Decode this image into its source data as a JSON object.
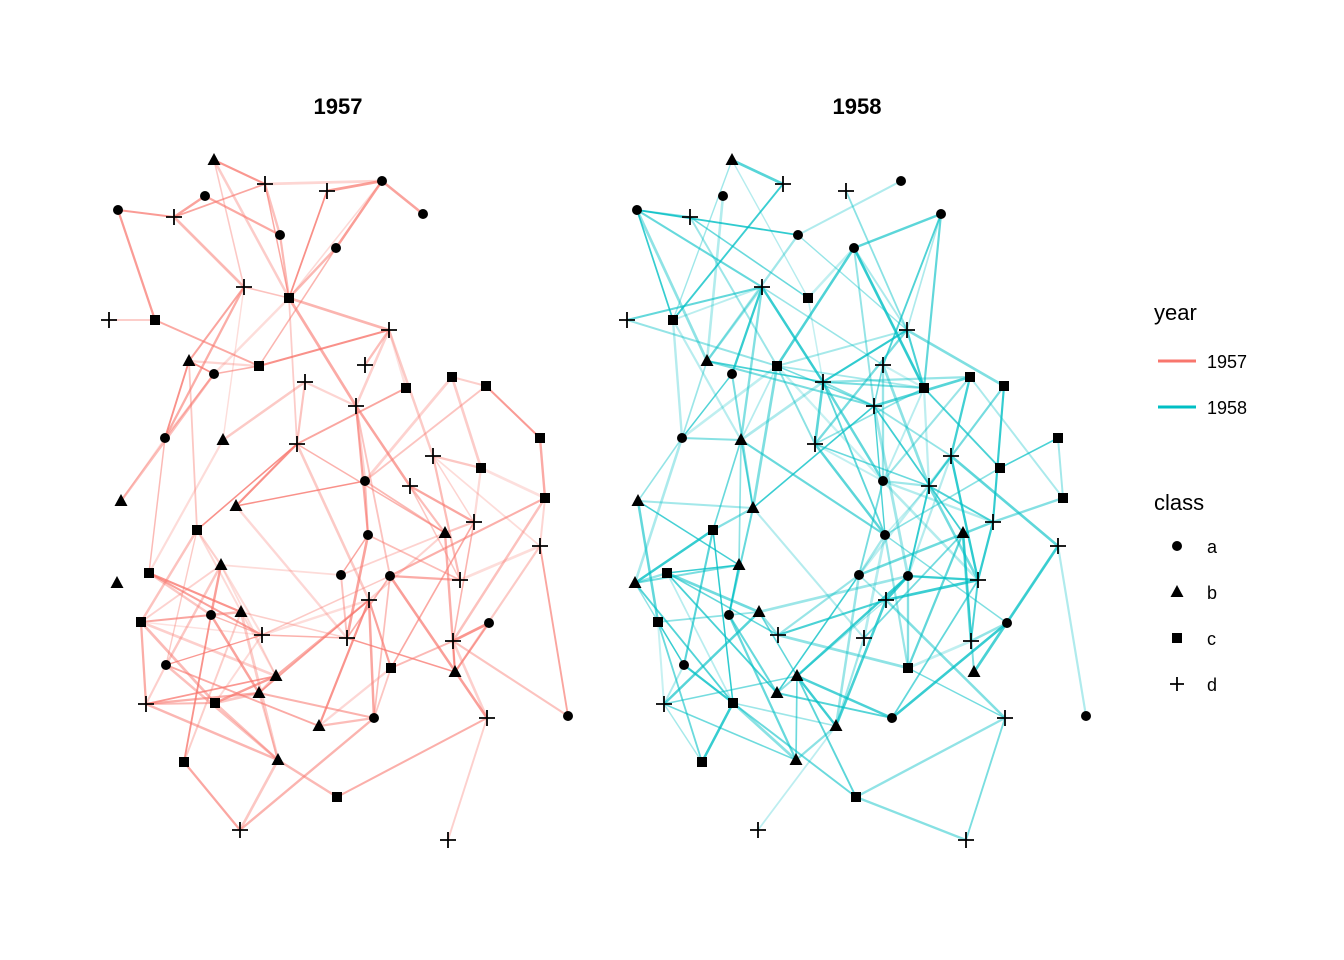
{
  "chart_data": {
    "type": "network",
    "facet_var": "year",
    "panels": [
      {
        "title": "1957",
        "year": "1957",
        "color": "#F8766D",
        "edge_count": 160
      },
      {
        "title": "1958",
        "year": "1958",
        "color": "#00BFC4",
        "edge_count": 190
      }
    ],
    "legend": {
      "placement": "right",
      "year": {
        "title": "year",
        "entries": [
          {
            "label": "1957",
            "color": "#F8766D"
          },
          {
            "label": "1958",
            "color": "#00BFC4"
          }
        ]
      },
      "class": {
        "title": "class",
        "entries": [
          {
            "label": "a",
            "shape": "circle"
          },
          {
            "label": "b",
            "shape": "triangle"
          },
          {
            "label": "c",
            "shape": "square"
          },
          {
            "label": "d",
            "shape": "plus"
          }
        ]
      }
    }
  }
}
